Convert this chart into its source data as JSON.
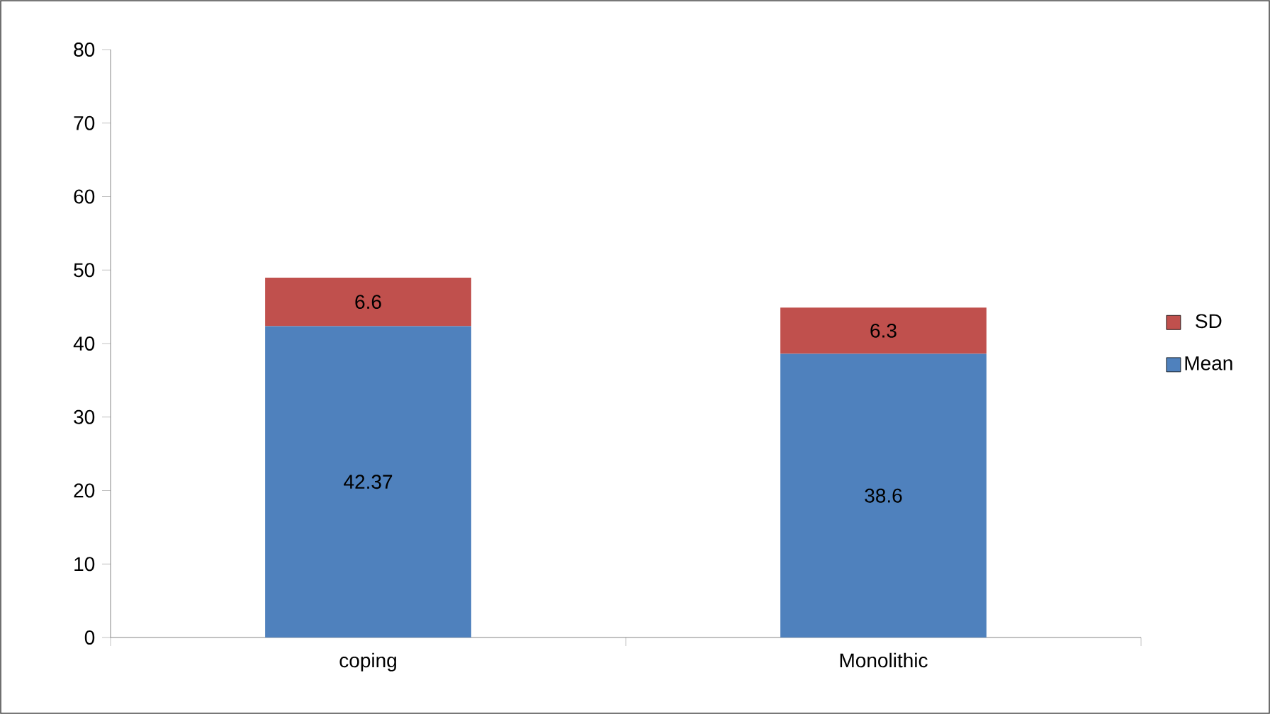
{
  "chart_data": {
    "type": "bar",
    "stacked": true,
    "categories": [
      "coping",
      "Monolithic"
    ],
    "series": [
      {
        "name": "Mean",
        "color": "#4f81bd",
        "values": [
          42.37,
          38.6
        ]
      },
      {
        "name": "SD",
        "color": "#c0504d",
        "values": [
          6.6,
          6.3
        ]
      }
    ],
    "ylim": [
      0,
      80
    ],
    "yticks": [
      0,
      10,
      20,
      30,
      40,
      50,
      60,
      70,
      80
    ],
    "data_labels": true,
    "legend": "right"
  }
}
